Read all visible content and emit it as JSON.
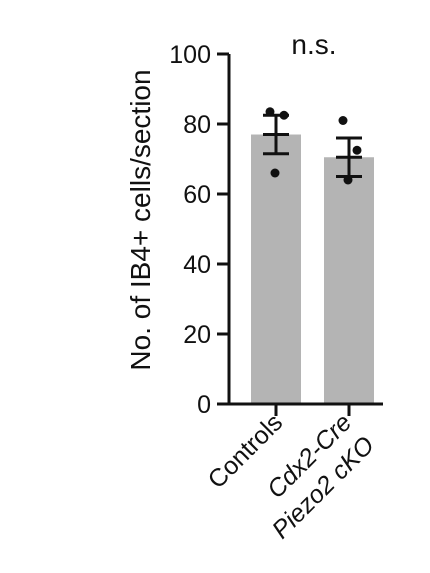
{
  "chart_data": {
    "type": "bar",
    "ylabel": "No. of IB4+ cells/section",
    "ylim": [
      0,
      100
    ],
    "yticks": [
      0,
      20,
      40,
      60,
      80,
      100
    ],
    "categories": [
      {
        "lines": [
          {
            "text": "Controls",
            "italic": false
          }
        ]
      },
      {
        "lines": [
          {
            "text": "Cdx2-Cre",
            "italic": true
          },
          {
            "text": "Piezo2 cKO",
            "italic": true
          }
        ]
      }
    ],
    "values": [
      77,
      70.5
    ],
    "sem": [
      5.5,
      5.5
    ],
    "points": [
      [
        83.5,
        82.5,
        66
      ],
      [
        81,
        72.5,
        64
      ]
    ],
    "annotation": "n.s.",
    "grid": false,
    "colors": {
      "bar": "#b4b4b4",
      "axis": "#111111",
      "points": "#111111"
    }
  }
}
